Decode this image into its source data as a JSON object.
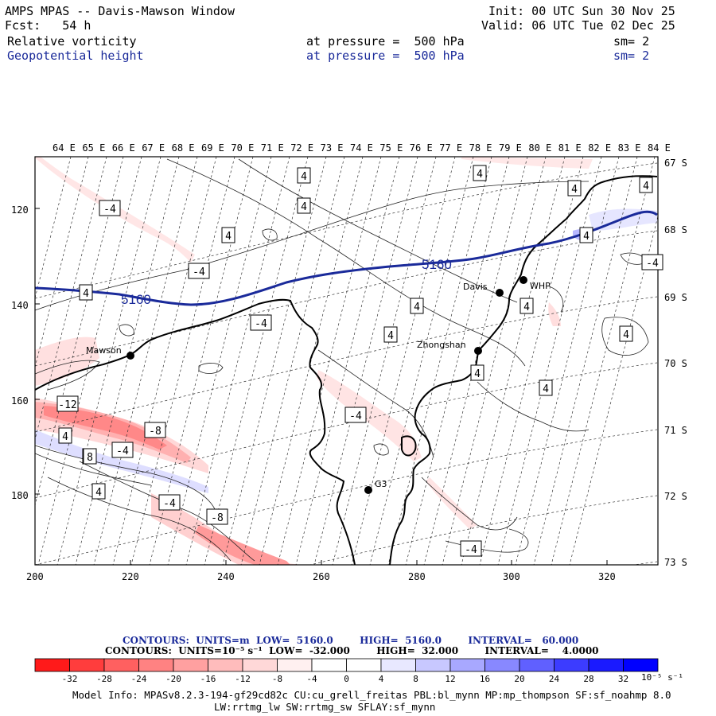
{
  "header": {
    "title": "AMPS MPAS -- Davis-Mawson Window",
    "forecast": "Fcst:   54 h",
    "init": "Init: 00 UTC Sun 30 Nov 25",
    "valid": "Valid: 06 UTC Tue 02 Dec 25",
    "field1_name": "Relative vorticity",
    "field1_level": "at pressure =  500 hPa",
    "field1_sm": "sm= 2",
    "field2_name": "Geopotential height",
    "field2_level": "at pressure =  500 hPa",
    "field2_sm": "sm= 2"
  },
  "axes": {
    "top_longitudes": [
      "64 E",
      "65 E",
      "66 E",
      "67 E",
      "68 E",
      "69 E",
      "70 E",
      "71 E",
      "72 E",
      "73 E",
      "74 E",
      "75 E",
      "76 E",
      "77 E",
      "78 E",
      "79 E",
      "80 E",
      "81 E",
      "82 E",
      "83 E",
      "84 E"
    ],
    "right_latitudes": [
      "67 S",
      "68 S",
      "69 S",
      "70 S",
      "71 S",
      "72 S",
      "73 S"
    ],
    "left_ticks": [
      "120",
      "140",
      "160",
      "180"
    ],
    "bottom_ticks": [
      "200",
      "220",
      "240",
      "260",
      "280",
      "300",
      "320"
    ]
  },
  "stations": [
    {
      "name": "Mawson"
    },
    {
      "name": "Davis"
    },
    {
      "name": "WHP"
    },
    {
      "name": "Zhongshan"
    },
    {
      "name": "G3"
    }
  ],
  "height_labels": [
    "5160",
    "5160"
  ],
  "vorticity_labels": [
    "4",
    "4",
    "4",
    "4",
    "4",
    "4",
    "4",
    "4",
    "4",
    "4",
    "4",
    "4",
    "4",
    "4",
    "4",
    "4",
    "4",
    "-4",
    "-4",
    "-4",
    "-4",
    "-4",
    "-4",
    "-4",
    "-4",
    "-8",
    "-8",
    "-12",
    "8"
  ],
  "contour_info": {
    "line1": "CONTOURS:  UNITS=m  LOW=  5160.0        HIGH=  5160.0        INTERVAL=   60.000",
    "line2": "CONTOURS:  UNITS=10⁻⁵ s⁻¹  LOW=  -32.000        HIGH=  32.000        INTERVAL=    4.0000"
  },
  "colorbar": {
    "colors": [
      "#ff1a1a",
      "#ff3d3d",
      "#ff6060",
      "#ff8282",
      "#ffa0a0",
      "#ffbcbc",
      "#ffd8d8",
      "#fff0f0",
      "#ffffff",
      "#ffffff",
      "#e8e8ff",
      "#c8c8ff",
      "#a8a8ff",
      "#8888ff",
      "#6060ff",
      "#3c3cff",
      "#1a1aff",
      "#0000ff"
    ],
    "labels": [
      "-32",
      "-28",
      "-24",
      "-20",
      "-16",
      "-12",
      "-8",
      "-4",
      "0",
      "4",
      "8",
      "12",
      "16",
      "20",
      "24",
      "28",
      "32"
    ],
    "units": "10⁻⁵ s⁻¹"
  },
  "model_info": {
    "line1": "Model Info: MPASv8.2.3-194-gf29cd82c CU:cu_grell_freitas PBL:bl_mynn MP:mp_thompson SF:sf_noahmp 8.0",
    "line2": "LW:rrtmg_lw SW:rrtmg_sw SFLAY:sf_mynn"
  }
}
